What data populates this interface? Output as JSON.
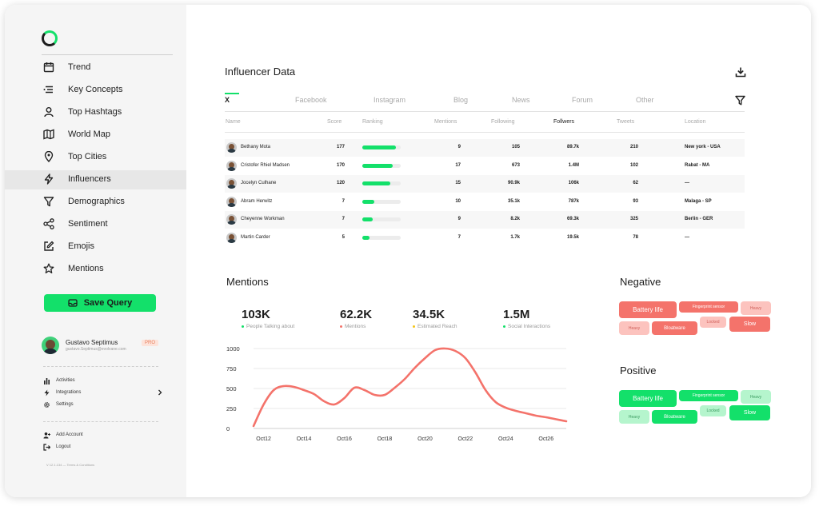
{
  "sidebar": {
    "nav": [
      {
        "label": "Trend",
        "icon": "calendar-icon"
      },
      {
        "label": "Key Concepts",
        "icon": "key-concepts-icon"
      },
      {
        "label": "Top Hashtags",
        "icon": "user-icon"
      },
      {
        "label": "World Map",
        "icon": "map-icon"
      },
      {
        "label": "Top Cities",
        "icon": "location-pin-icon"
      },
      {
        "label": "Influencers",
        "icon": "lightning-icon"
      },
      {
        "label": "Demographics",
        "icon": "filter-funnel-icon"
      },
      {
        "label": "Sentiment",
        "icon": "share-nodes-icon"
      },
      {
        "label": "Emojis",
        "icon": "edit-icon"
      },
      {
        "label": "Mentions",
        "icon": "star-icon"
      }
    ],
    "active_item": "Influencers",
    "save_query_label": "Save Query",
    "user": {
      "name": "Gustavo Septimus",
      "email": "gustavo.Septimus@evolvane.com",
      "badge": "PRO"
    },
    "secondary": [
      {
        "label": "Activities",
        "icon": "bar-chart-icon"
      },
      {
        "label": "Integrations",
        "icon": "lightning-icon"
      },
      {
        "label": "Settings",
        "icon": "gear-icon"
      }
    ],
    "account": [
      {
        "label": "Add Account",
        "icon": "add-user-icon"
      },
      {
        "label": "Logout",
        "icon": "logout-icon"
      }
    ],
    "version": "V 12.1.134 — Terms & Conditions"
  },
  "influencers": {
    "title": "Influencer Data",
    "tabs": [
      "X",
      "Facebook",
      "Instagram",
      "Blog",
      "News",
      "Forum",
      "Other"
    ],
    "active_tab": "X",
    "columns": [
      "Name",
      "Score",
      "Ranking",
      "Mentions",
      "Following",
      "Follwers",
      "Tweets",
      "Location"
    ],
    "rows": [
      {
        "name": "Bethany Mota",
        "score": "177",
        "ranking": 0.88,
        "mentions": "9",
        "following": "105",
        "followers": "89.7k",
        "tweets": "210",
        "location": "New york - USA"
      },
      {
        "name": "Cristofer Rhiel Madsen",
        "score": "170",
        "ranking": 0.8,
        "mentions": "17",
        "following": "673",
        "followers": "1.4M",
        "tweets": "102",
        "location": "Rabat - MA"
      },
      {
        "name": "Jocelyn Culhane",
        "score": "120",
        "ranking": 0.72,
        "mentions": "15",
        "following": "90.9k",
        "followers": "106k",
        "tweets": "62",
        "location": "—"
      },
      {
        "name": "Abram Herwitz",
        "score": "7",
        "ranking": 0.32,
        "mentions": "10",
        "following": "35.1k",
        "followers": "787k",
        "tweets": "93",
        "location": "Malaga - SP"
      },
      {
        "name": "Cheyenne Workman",
        "score": "7",
        "ranking": 0.28,
        "mentions": "9",
        "following": "8.2k",
        "followers": "69.3k",
        "tweets": "325",
        "location": "Berlin - GER"
      },
      {
        "name": "Martin Carder",
        "score": "5",
        "ranking": 0.18,
        "mentions": "7",
        "following": "1.7k",
        "followers": "19.5k",
        "tweets": "78",
        "location": "—"
      }
    ]
  },
  "mentions": {
    "title": "Mentions",
    "stats": [
      {
        "value": "103K",
        "label": "People Talking about",
        "color": "#13e06a"
      },
      {
        "value": "62.2K",
        "label": "Mentions",
        "color": "#f4736b"
      },
      {
        "value": "34.5K",
        "label": "Estimated Reach",
        "color": "#f5c518"
      },
      {
        "value": "1.5M",
        "label": "Social Interactions",
        "color": "#13e06a"
      }
    ]
  },
  "chart_data": {
    "type": "line",
    "title": "",
    "xlabel": "",
    "ylabel": "",
    "x_ticks": [
      "Oct12",
      "Oct14",
      "Oct16",
      "Oct18",
      "Oct20",
      "Oct22",
      "Oct24",
      "Oct26"
    ],
    "y_ticks": [
      0,
      250,
      500,
      750,
      1000
    ],
    "ylim": [
      0,
      1000
    ],
    "xlim": [
      11.5,
      27
    ],
    "grid": true,
    "color": "#f4736b",
    "x": [
      11.5,
      12,
      12.5,
      13,
      13.5,
      14,
      14.5,
      15,
      15.5,
      16,
      16.5,
      17,
      17.5,
      18,
      18.5,
      19,
      19.5,
      20,
      20.5,
      21,
      21.5,
      22,
      22.5,
      23,
      23.5,
      24,
      24.5,
      25,
      25.5,
      26,
      26.5,
      27
    ],
    "y": [
      30,
      300,
      480,
      530,
      520,
      480,
      430,
      340,
      300,
      380,
      510,
      480,
      420,
      420,
      510,
      620,
      760,
      880,
      980,
      1000,
      970,
      880,
      700,
      480,
      330,
      260,
      220,
      190,
      160,
      140,
      115,
      90
    ]
  },
  "sentiment": {
    "negative": {
      "title": "Negative",
      "tags": [
        "Battery life",
        "Fingerprint sensor",
        "Heavy",
        "Heavy",
        "Bloatware",
        "Locked",
        "Slow"
      ]
    },
    "positive": {
      "title": "Positive",
      "tags": [
        "Battery life",
        "Fingerprint sensor",
        "Heavy",
        "Heavy",
        "Bloatware",
        "Locked",
        "Slow"
      ]
    }
  },
  "colors": {
    "accent": "#13e06a",
    "negative_strong": "#f4736b",
    "negative_light": "#fcc3be",
    "positive_strong": "#13e06a",
    "positive_light": "#b5f5cd"
  }
}
